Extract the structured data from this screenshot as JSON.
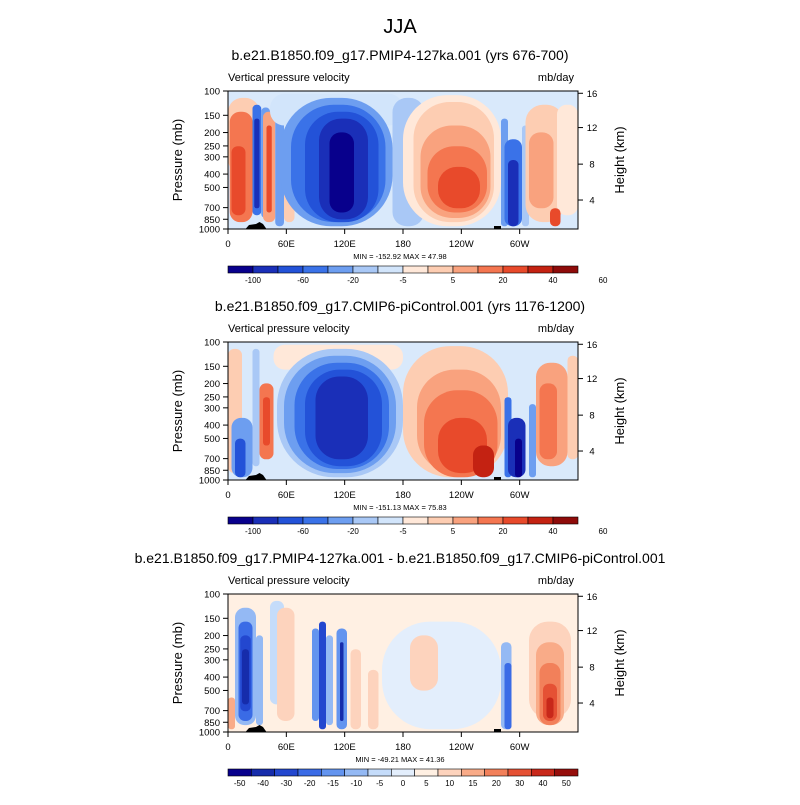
{
  "figure_title": "JJA",
  "colors": {
    "panel_scale": [
      "#08008c",
      "#1a2fb8",
      "#2352d8",
      "#3a72e8",
      "#6d9ef0",
      "#a9c8f6",
      "#d2e5fb",
      "#ffe8d9",
      "#fdcdb2",
      "#f9a27e",
      "#f47650",
      "#e84a2b",
      "#c42212",
      "#8e0b0a"
    ],
    "diff_scale": [
      "#08008c",
      "#162cab",
      "#2347cf",
      "#3a6be6",
      "#6394ef",
      "#94b9f4",
      "#c5dcfa",
      "#e3eefc",
      "#fff0e3",
      "#fdd3bd",
      "#f9ab88",
      "#f2805a",
      "#e55134",
      "#c8281a",
      "#960e0c"
    ]
  },
  "chart_data": [
    {
      "type": "heatmap",
      "title": "b.e21.B1850.f09_g17.PMIP4-127ka.001 (yrs 676-700)",
      "left_label": "Vertical pressure velocity",
      "units": "mb/day",
      "ylabel": "Pressure (mb)",
      "y2label": "Height (km)",
      "y_ticks": [
        "100",
        "150",
        "200",
        "250",
        "300",
        "400",
        "500",
        "700",
        "850",
        "1000"
      ],
      "y2_ticks": [
        "16",
        "12",
        "8",
        "4"
      ],
      "x_ticks": [
        "0",
        "60E",
        "120E",
        "180",
        "120W",
        "60W"
      ],
      "stats": "MIN = -152.92   MAX =  47.98",
      "colorbar_labels": [
        "-100",
        "-60",
        "-20",
        "-5",
        "5",
        "20",
        "40",
        "60"
      ]
    },
    {
      "type": "heatmap",
      "title": "b.e21.B1850.f09_g17.CMIP6-piControl.001 (yrs 1176-1200)",
      "left_label": "Vertical pressure velocity",
      "units": "mb/day",
      "ylabel": "Pressure (mb)",
      "y2label": "Height (km)",
      "y_ticks": [
        "100",
        "150",
        "200",
        "250",
        "300",
        "400",
        "500",
        "700",
        "850",
        "1000"
      ],
      "y2_ticks": [
        "16",
        "12",
        "8",
        "4"
      ],
      "x_ticks": [
        "0",
        "60E",
        "120E",
        "180",
        "120W",
        "60W"
      ],
      "stats": "MIN = -151.13   MAX =  75.83",
      "colorbar_labels": [
        "-100",
        "-60",
        "-20",
        "-5",
        "5",
        "20",
        "40",
        "60"
      ]
    },
    {
      "type": "heatmap",
      "title": "b.e21.B1850.f09_g17.PMIP4-127ka.001 - b.e21.B1850.f09_g17.CMIP6-piControl.001",
      "left_label": "Vertical pressure velocity",
      "units": "mb/day",
      "ylabel": "Pressure (mb)",
      "y2label": "Height (km)",
      "y_ticks": [
        "100",
        "150",
        "200",
        "250",
        "300",
        "400",
        "500",
        "700",
        "850",
        "1000"
      ],
      "y2_ticks": [
        "16",
        "12",
        "8",
        "4"
      ],
      "x_ticks": [
        "0",
        "60E",
        "120E",
        "180",
        "120W",
        "60W"
      ],
      "stats": "MIN = -49.21   MAX =  41.36",
      "colorbar_labels": [
        "-50",
        "-40",
        "-30",
        "-20",
        "-15",
        "-10",
        "-5",
        "0",
        "5",
        "10",
        "15",
        "20",
        "30",
        "40",
        "50"
      ]
    }
  ]
}
